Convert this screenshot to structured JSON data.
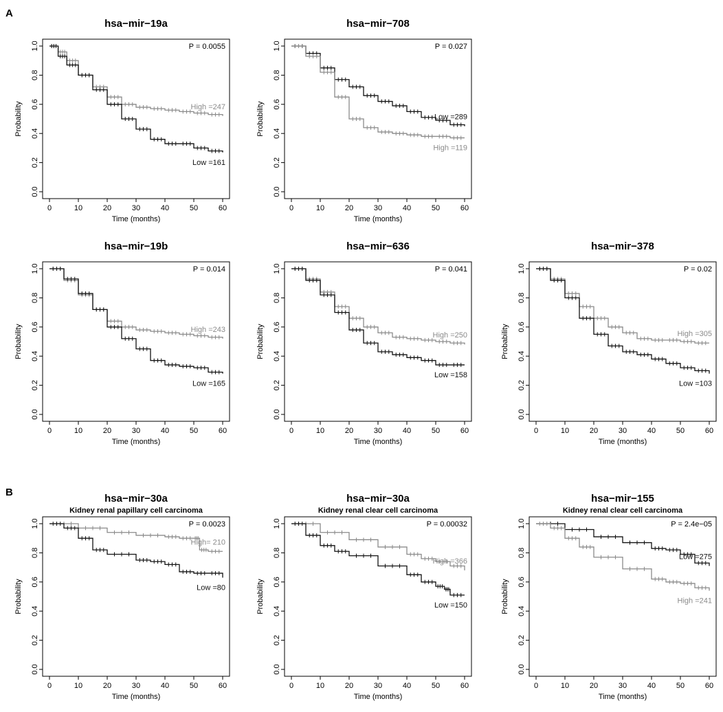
{
  "panel_labels": {
    "a": "A",
    "b": "B"
  },
  "chart_data": [
    {
      "type": "line",
      "title": "hsa−mir−19a",
      "subtitle": "",
      "xlabel": "Time (months)",
      "ylabel": "Probability",
      "xlim": [
        0,
        60
      ],
      "ylim": [
        0,
        1
      ],
      "xticks": [
        "0",
        "10",
        "20",
        "30",
        "40",
        "50",
        "60"
      ],
      "yticks": [
        "0.0",
        "0.2",
        "0.4",
        "0.6",
        "0.8",
        "1.0"
      ],
      "p_value": "P = 0.0055",
      "series": [
        {
          "name": "High",
          "label": "High =247",
          "color": "#8a8a8a",
          "points": [
            [
              0,
              1.0
            ],
            [
              3,
              0.96
            ],
            [
              6,
              0.9
            ],
            [
              10,
              0.8
            ],
            [
              15,
              0.72
            ],
            [
              20,
              0.65
            ],
            [
              25,
              0.6
            ],
            [
              30,
              0.58
            ],
            [
              35,
              0.57
            ],
            [
              40,
              0.56
            ],
            [
              45,
              0.55
            ],
            [
              50,
              0.54
            ],
            [
              55,
              0.53
            ],
            [
              60,
              0.52
            ]
          ]
        },
        {
          "name": "Low",
          "label": "Low =161",
          "color": "#111111",
          "points": [
            [
              0,
              1.0
            ],
            [
              3,
              0.93
            ],
            [
              6,
              0.87
            ],
            [
              10,
              0.8
            ],
            [
              15,
              0.7
            ],
            [
              20,
              0.6
            ],
            [
              25,
              0.5
            ],
            [
              30,
              0.43
            ],
            [
              35,
              0.36
            ],
            [
              40,
              0.33
            ],
            [
              45,
              0.33
            ],
            [
              50,
              0.3
            ],
            [
              55,
              0.28
            ],
            [
              60,
              0.27
            ]
          ]
        }
      ]
    },
    {
      "type": "line",
      "title": "hsa−mir−708",
      "subtitle": "",
      "xlabel": "Time (months)",
      "ylabel": "Probability",
      "xlim": [
        0,
        60
      ],
      "ylim": [
        0,
        1
      ],
      "xticks": [
        "0",
        "10",
        "20",
        "30",
        "40",
        "50",
        "60"
      ],
      "yticks": [
        "0.0",
        "0.2",
        "0.4",
        "0.6",
        "0.8",
        "1.0"
      ],
      "p_value": "P = 0.027",
      "series": [
        {
          "name": "Low",
          "label": "Low =289",
          "color": "#111111",
          "points": [
            [
              0,
              1.0
            ],
            [
              5,
              0.95
            ],
            [
              10,
              0.85
            ],
            [
              15,
              0.77
            ],
            [
              20,
              0.72
            ],
            [
              25,
              0.66
            ],
            [
              30,
              0.62
            ],
            [
              35,
              0.59
            ],
            [
              40,
              0.55
            ],
            [
              45,
              0.51
            ],
            [
              50,
              0.49
            ],
            [
              55,
              0.46
            ],
            [
              60,
              0.45
            ]
          ]
        },
        {
          "name": "High",
          "label": "High =119",
          "color": "#8a8a8a",
          "points": [
            [
              0,
              1.0
            ],
            [
              5,
              0.93
            ],
            [
              10,
              0.82
            ],
            [
              15,
              0.65
            ],
            [
              20,
              0.5
            ],
            [
              25,
              0.44
            ],
            [
              30,
              0.41
            ],
            [
              35,
              0.4
            ],
            [
              40,
              0.39
            ],
            [
              45,
              0.38
            ],
            [
              50,
              0.38
            ],
            [
              55,
              0.37
            ],
            [
              60,
              0.37
            ]
          ]
        }
      ]
    },
    {
      "type": "empty"
    },
    {
      "type": "line",
      "title": "hsa−mir−19b",
      "subtitle": "",
      "xlabel": "Time (months)",
      "ylabel": "Probability",
      "xlim": [
        0,
        60
      ],
      "ylim": [
        0,
        1
      ],
      "xticks": [
        "0",
        "10",
        "20",
        "30",
        "40",
        "50",
        "60"
      ],
      "yticks": [
        "0.0",
        "0.2",
        "0.4",
        "0.6",
        "0.8",
        "1.0"
      ],
      "p_value": "P = 0.014",
      "series": [
        {
          "name": "High",
          "label": "High =243",
          "color": "#8a8a8a",
          "points": [
            [
              0,
              1.0
            ],
            [
              5,
              0.92
            ],
            [
              10,
              0.82
            ],
            [
              15,
              0.72
            ],
            [
              20,
              0.64
            ],
            [
              25,
              0.6
            ],
            [
              30,
              0.58
            ],
            [
              35,
              0.57
            ],
            [
              40,
              0.56
            ],
            [
              45,
              0.55
            ],
            [
              50,
              0.54
            ],
            [
              55,
              0.53
            ],
            [
              60,
              0.52
            ]
          ]
        },
        {
          "name": "Low",
          "label": "Low =165",
          "color": "#111111",
          "points": [
            [
              0,
              1.0
            ],
            [
              5,
              0.93
            ],
            [
              10,
              0.83
            ],
            [
              15,
              0.72
            ],
            [
              20,
              0.6
            ],
            [
              25,
              0.52
            ],
            [
              30,
              0.45
            ],
            [
              35,
              0.37
            ],
            [
              40,
              0.34
            ],
            [
              45,
              0.33
            ],
            [
              50,
              0.32
            ],
            [
              55,
              0.29
            ],
            [
              60,
              0.28
            ]
          ]
        }
      ]
    },
    {
      "type": "line",
      "title": "hsa−mir−636",
      "subtitle": "",
      "xlabel": "Time (months)",
      "ylabel": "Probability",
      "xlim": [
        0,
        60
      ],
      "ylim": [
        0,
        1
      ],
      "xticks": [
        "0",
        "10",
        "20",
        "30",
        "40",
        "50",
        "60"
      ],
      "yticks": [
        "0.0",
        "0.2",
        "0.4",
        "0.6",
        "0.8",
        "1.0"
      ],
      "p_value": "P = 0.041",
      "series": [
        {
          "name": "High",
          "label": "High =250",
          "color": "#8a8a8a",
          "points": [
            [
              0,
              1.0
            ],
            [
              5,
              0.93
            ],
            [
              10,
              0.84
            ],
            [
              15,
              0.74
            ],
            [
              20,
              0.66
            ],
            [
              25,
              0.6
            ],
            [
              30,
              0.56
            ],
            [
              35,
              0.53
            ],
            [
              40,
              0.52
            ],
            [
              45,
              0.51
            ],
            [
              50,
              0.5
            ],
            [
              55,
              0.49
            ],
            [
              60,
              0.48
            ]
          ]
        },
        {
          "name": "Low",
          "label": "Low =158",
          "color": "#111111",
          "points": [
            [
              0,
              1.0
            ],
            [
              5,
              0.92
            ],
            [
              10,
              0.82
            ],
            [
              15,
              0.7
            ],
            [
              20,
              0.58
            ],
            [
              25,
              0.49
            ],
            [
              30,
              0.43
            ],
            [
              35,
              0.41
            ],
            [
              40,
              0.39
            ],
            [
              45,
              0.37
            ],
            [
              50,
              0.34
            ],
            [
              55,
              0.34
            ],
            [
              60,
              0.34
            ]
          ]
        }
      ]
    },
    {
      "type": "line",
      "title": "hsa−mir−378",
      "subtitle": "",
      "xlabel": "Time (months)",
      "ylabel": "Probability",
      "xlim": [
        0,
        60
      ],
      "ylim": [
        0,
        1
      ],
      "xticks": [
        "0",
        "10",
        "20",
        "30",
        "40",
        "50",
        "60"
      ],
      "yticks": [
        "0.0",
        "0.2",
        "0.4",
        "0.6",
        "0.8",
        "1.0"
      ],
      "p_value": "P = 0.02",
      "series": [
        {
          "name": "High",
          "label": "High =305",
          "color": "#8a8a8a",
          "points": [
            [
              0,
              1.0
            ],
            [
              5,
              0.93
            ],
            [
              10,
              0.83
            ],
            [
              15,
              0.74
            ],
            [
              20,
              0.66
            ],
            [
              25,
              0.6
            ],
            [
              30,
              0.56
            ],
            [
              35,
              0.52
            ],
            [
              40,
              0.51
            ],
            [
              45,
              0.51
            ],
            [
              50,
              0.5
            ],
            [
              55,
              0.49
            ],
            [
              60,
              0.49
            ]
          ]
        },
        {
          "name": "Low",
          "label": "Low =103",
          "color": "#111111",
          "points": [
            [
              0,
              1.0
            ],
            [
              5,
              0.92
            ],
            [
              10,
              0.8
            ],
            [
              15,
              0.66
            ],
            [
              20,
              0.55
            ],
            [
              25,
              0.47
            ],
            [
              30,
              0.43
            ],
            [
              35,
              0.41
            ],
            [
              40,
              0.38
            ],
            [
              45,
              0.35
            ],
            [
              50,
              0.32
            ],
            [
              55,
              0.3
            ],
            [
              60,
              0.28
            ]
          ]
        }
      ]
    },
    {
      "type": "line",
      "title": "hsa−mir−30a",
      "subtitle": "Kidney renal papillary cell carcinoma",
      "xlabel": "Time (months)",
      "ylabel": "Probability",
      "xlim": [
        0,
        60
      ],
      "ylim": [
        0,
        1
      ],
      "xticks": [
        "0",
        "10",
        "20",
        "30",
        "40",
        "50",
        "60"
      ],
      "yticks": [
        "0.0",
        "0.2",
        "0.4",
        "0.6",
        "0.8",
        "1.0"
      ],
      "p_value": "P = 0.0023",
      "series": [
        {
          "name": "High",
          "label": "High= 210",
          "color": "#8a8a8a",
          "points": [
            [
              0,
              1.0
            ],
            [
              10,
              0.97
            ],
            [
              20,
              0.94
            ],
            [
              30,
              0.92
            ],
            [
              40,
              0.91
            ],
            [
              45,
              0.9
            ],
            [
              50,
              0.9
            ],
            [
              52,
              0.82
            ],
            [
              55,
              0.81
            ],
            [
              60,
              0.81
            ]
          ]
        },
        {
          "name": "Low",
          "label": "Low =80",
          "color": "#111111",
          "points": [
            [
              0,
              1.0
            ],
            [
              5,
              0.97
            ],
            [
              10,
              0.9
            ],
            [
              15,
              0.82
            ],
            [
              20,
              0.79
            ],
            [
              30,
              0.75
            ],
            [
              35,
              0.74
            ],
            [
              40,
              0.72
            ],
            [
              45,
              0.67
            ],
            [
              50,
              0.66
            ],
            [
              55,
              0.66
            ],
            [
              60,
              0.63
            ]
          ]
        }
      ]
    },
    {
      "type": "line",
      "title": "hsa−mir−30a",
      "subtitle": "Kidney renal clear cell carcinoma",
      "xlabel": "Time (months)",
      "ylabel": "Probability",
      "xlim": [
        0,
        60
      ],
      "ylim": [
        0,
        1
      ],
      "xticks": [
        "0",
        "10",
        "20",
        "30",
        "40",
        "50",
        "60"
      ],
      "yticks": [
        "0.0",
        "0.2",
        "0.4",
        "0.6",
        "0.8",
        "1.0"
      ],
      "p_value": "P = 0.00032",
      "series": [
        {
          "name": "High",
          "label": "High =366",
          "color": "#8a8a8a",
          "points": [
            [
              0,
              1.0
            ],
            [
              10,
              0.94
            ],
            [
              20,
              0.89
            ],
            [
              30,
              0.84
            ],
            [
              40,
              0.79
            ],
            [
              45,
              0.76
            ],
            [
              50,
              0.74
            ],
            [
              55,
              0.71
            ],
            [
              60,
              0.68
            ]
          ]
        },
        {
          "name": "Low",
          "label": "Low =150",
          "color": "#111111",
          "points": [
            [
              0,
              1.0
            ],
            [
              5,
              0.92
            ],
            [
              10,
              0.85
            ],
            [
              15,
              0.81
            ],
            [
              20,
              0.78
            ],
            [
              30,
              0.71
            ],
            [
              40,
              0.65
            ],
            [
              45,
              0.6
            ],
            [
              50,
              0.57
            ],
            [
              53,
              0.55
            ],
            [
              55,
              0.51
            ],
            [
              60,
              0.51
            ]
          ]
        }
      ]
    },
    {
      "type": "line",
      "title": "hsa−mir−155",
      "subtitle": "Kidney renal clear cell carcinoma",
      "xlabel": "Time (months)",
      "ylabel": "Probability",
      "xlim": [
        0,
        60
      ],
      "ylim": [
        0,
        1
      ],
      "xticks": [
        "0",
        "10",
        "20",
        "30",
        "40",
        "50",
        "60"
      ],
      "yticks": [
        "0.0",
        "0.2",
        "0.4",
        "0.6",
        "0.8",
        "1.0"
      ],
      "p_value": "P = 2.4e−05",
      "series": [
        {
          "name": "Low",
          "label": "Low =275",
          "color": "#111111",
          "points": [
            [
              0,
              1.0
            ],
            [
              10,
              0.96
            ],
            [
              20,
              0.91
            ],
            [
              30,
              0.87
            ],
            [
              40,
              0.83
            ],
            [
              45,
              0.82
            ],
            [
              50,
              0.79
            ],
            [
              55,
              0.73
            ],
            [
              60,
              0.71
            ]
          ]
        },
        {
          "name": "High",
          "label": "High =241",
          "color": "#8a8a8a",
          "points": [
            [
              0,
              1.0
            ],
            [
              5,
              0.97
            ],
            [
              10,
              0.9
            ],
            [
              15,
              0.84
            ],
            [
              20,
              0.77
            ],
            [
              30,
              0.69
            ],
            [
              40,
              0.62
            ],
            [
              45,
              0.6
            ],
            [
              50,
              0.59
            ],
            [
              55,
              0.56
            ],
            [
              60,
              0.54
            ]
          ]
        }
      ]
    }
  ]
}
